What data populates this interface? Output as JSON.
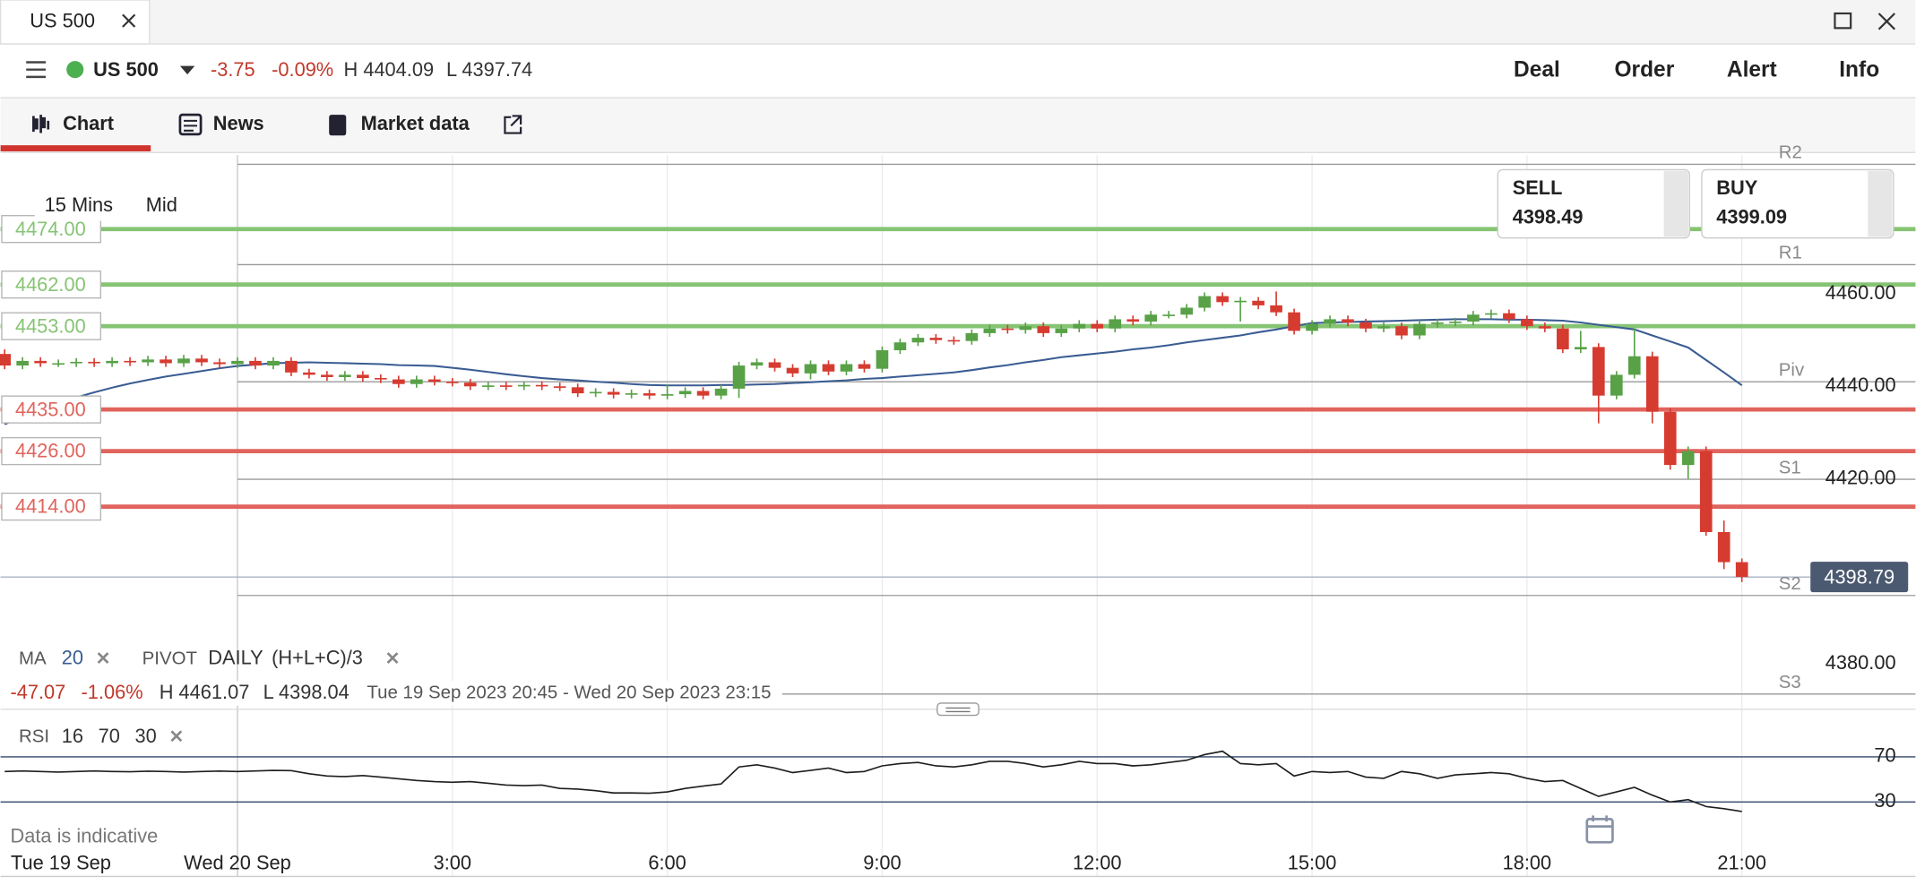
{
  "window": {
    "tab": "US 500"
  },
  "header": {
    "instrument": "US 500",
    "change": -3.75,
    "change_pct": "-0.09%",
    "high": "H 4404.09",
    "low": "L 4397.74",
    "actions": [
      "Deal",
      "Order",
      "Alert",
      "Info"
    ]
  },
  "tabs": [
    "Chart",
    "News",
    "Market data"
  ],
  "toolbar": {
    "interval": "15 Mins",
    "price_type": "Mid"
  },
  "quote": {
    "sell_label": "SELL",
    "sell": 4398.49,
    "buy_label": "BUY",
    "buy": 4399.09
  },
  "indicators": {
    "pivot": "PIVOT",
    "pivot_period": "DAILY",
    "pivot_formula": "(H+L+C)/3"
  },
  "stats": {
    "change": -47.07,
    "change_pct": "-1.06%",
    "high": "H 4461.07",
    "low": "L 4398.04",
    "range": "Tue 19 Sep 2023 20:45 - Wed 20 Sep 2023 23:15"
  },
  "footer": {
    "note": "Data is indicative"
  },
  "chart_data": [
    {
      "type": "candlestick",
      "categories": [
        "Tue 19 Sep",
        null,
        null,
        null,
        null,
        null,
        null,
        null,
        null,
        null,
        null,
        null,
        null,
        "Wed 20 Sep",
        null,
        null,
        null,
        null,
        null,
        null,
        null,
        null,
        null,
        null,
        null,
        "3:00",
        null,
        null,
        null,
        null,
        null,
        null,
        null,
        null,
        null,
        null,
        null,
        "6:00",
        null,
        null,
        null,
        null,
        null,
        null,
        null,
        null,
        null,
        null,
        null,
        "9:00",
        null,
        null,
        null,
        null,
        null,
        null,
        null,
        null,
        null,
        null,
        null,
        "12:00",
        null,
        null,
        null,
        null,
        null,
        null,
        null,
        null,
        null,
        null,
        null,
        "15:00",
        null,
        null,
        null,
        null,
        null,
        null,
        null,
        null,
        null,
        null,
        null,
        "18:00",
        null,
        null,
        null,
        null,
        null,
        null,
        null,
        null,
        null,
        null,
        null,
        "21:00"
      ],
      "candles": [
        [
          4447,
          4448,
          4443.7,
          4444.5
        ],
        [
          4444.5,
          4446.3,
          4443.7,
          4445.5
        ],
        [
          4445.5,
          4446.3,
          4444.2,
          4445
        ],
        [
          4445,
          4445.8,
          4444.2,
          4445
        ],
        [
          4445,
          4446.1,
          4444.2,
          4445.3
        ],
        [
          4445.3,
          4446.1,
          4444.2,
          4445
        ],
        [
          4445,
          4446.3,
          4444.2,
          4445.5
        ],
        [
          4445.5,
          4446.3,
          4444.4,
          4445.2
        ],
        [
          4445.2,
          4446.6,
          4444.4,
          4445.8
        ],
        [
          4445.8,
          4446.6,
          4444.2,
          4445
        ],
        [
          4445,
          4446.8,
          4444.2,
          4446
        ],
        [
          4446,
          4446.8,
          4444.4,
          4445.2
        ],
        [
          4445.2,
          4446,
          4444,
          4444.8
        ],
        [
          4444.8,
          4446.3,
          4444,
          4445.5
        ],
        [
          4445.5,
          4446.3,
          4443.7,
          4444.5
        ],
        [
          4444.5,
          4446.3,
          4443.7,
          4445.5
        ],
        [
          4445.5,
          4446.3,
          4442.2,
          4443
        ],
        [
          4443,
          4443.8,
          4441.7,
          4442.5
        ],
        [
          4442.5,
          4443.3,
          4441.2,
          4442
        ],
        [
          4442,
          4443.3,
          4441.2,
          4442.5
        ],
        [
          4442.5,
          4443.3,
          4441,
          4441.8
        ],
        [
          4441.8,
          4442.6,
          4440.7,
          4441.5
        ],
        [
          4441.5,
          4442.3,
          4439.7,
          4440.5
        ],
        [
          4440.5,
          4442.3,
          4439.7,
          4441.5
        ],
        [
          4441.5,
          4442.3,
          4440.2,
          4441
        ],
        [
          4441,
          4441.8,
          4440,
          4440.8
        ],
        [
          4440.8,
          4441.6,
          4439.2,
          4440
        ],
        [
          4440,
          4441,
          4439.2,
          4440.2
        ],
        [
          4440.2,
          4441,
          4439.2,
          4440
        ],
        [
          4440,
          4441.1,
          4439.2,
          4440.3
        ],
        [
          4440.3,
          4441.1,
          4439.2,
          4440
        ],
        [
          4440,
          4440.8,
          4439,
          4439.8
        ],
        [
          4439.8,
          4440.6,
          4437.7,
          4438.5
        ],
        [
          4438.5,
          4439.6,
          4437.7,
          4438.8
        ],
        [
          4438.8,
          4439.6,
          4437.4,
          4438.2
        ],
        [
          4438.2,
          4439.3,
          4437.4,
          4438.5
        ],
        [
          4438.5,
          4439.3,
          4437.2,
          4438
        ],
        [
          4438,
          4440.5,
          4437.2,
          4438.3
        ],
        [
          4438.3,
          4439.8,
          4437.5,
          4439
        ],
        [
          4439,
          4439.8,
          4437.2,
          4438
        ],
        [
          4438,
          4440.3,
          4437.2,
          4439.5
        ],
        [
          4439.5,
          4445.3,
          4437.5,
          4444.5
        ],
        [
          4444.5,
          4446,
          4443.7,
          4445.2
        ],
        [
          4445.2,
          4446,
          4443.2,
          4444
        ],
        [
          4444,
          4444.8,
          4442,
          4442.8
        ],
        [
          4442.8,
          4445.6,
          4441.5,
          4444.8
        ],
        [
          4444.8,
          4445.6,
          4442.4,
          4443.2
        ],
        [
          4443.2,
          4445.6,
          4442.4,
          4444.8
        ],
        [
          4444.8,
          4445.6,
          4443,
          4443.8
        ],
        [
          4443.8,
          4448.6,
          4443,
          4447.8
        ],
        [
          4447.8,
          4450.3,
          4447,
          4449.5
        ],
        [
          4449.5,
          4451.3,
          4448.7,
          4450.5
        ],
        [
          4450.5,
          4451.3,
          4449.2,
          4450
        ],
        [
          4450,
          4450.8,
          4449,
          4449.8
        ],
        [
          4449.8,
          4452.3,
          4449,
          4451.5
        ],
        [
          4451.5,
          4453.3,
          4450.7,
          4452.5
        ],
        [
          4452.5,
          4453.3,
          4451.4,
          4452.2
        ],
        [
          4452.2,
          4453.8,
          4451.4,
          4453
        ],
        [
          4453,
          4453.8,
          4450.7,
          4451.5
        ],
        [
          4451.5,
          4453.3,
          4450.7,
          4452.5
        ],
        [
          4452.5,
          4454.3,
          4451.7,
          4453.5
        ],
        [
          4453.5,
          4454.3,
          4451.7,
          4452.5
        ],
        [
          4452.5,
          4455.3,
          4451.7,
          4454.5
        ],
        [
          4454.5,
          4455.3,
          4453.2,
          4454
        ],
        [
          4454,
          4456.3,
          4453.2,
          4455.5
        ],
        [
          4455.5,
          4456.3,
          4454.7,
          4455.5
        ],
        [
          4455.5,
          4457.8,
          4454.7,
          4457
        ],
        [
          4457,
          4460.3,
          4456.2,
          4459.5
        ],
        [
          4459.5,
          4460.3,
          4457.4,
          4458.2
        ],
        [
          4458.2,
          4459.3,
          4454,
          4458.5
        ],
        [
          4458.5,
          4459.3,
          4456.7,
          4457.5
        ],
        [
          4457.5,
          4460.5,
          4455.2,
          4456
        ],
        [
          4456,
          4456.8,
          4451.2,
          4452
        ],
        [
          4452,
          4454.3,
          4451.2,
          4453.5
        ],
        [
          4453.5,
          4455.3,
          4452.7,
          4454.5
        ],
        [
          4454.5,
          4455.3,
          4453,
          4453.8
        ],
        [
          4453.8,
          4454.6,
          4451.7,
          4452.5
        ],
        [
          4452.5,
          4453.8,
          4451.7,
          4453
        ],
        [
          4453,
          4453.8,
          4450.2,
          4451
        ],
        [
          4451,
          4454.3,
          4450.2,
          4453.5
        ],
        [
          4453.5,
          4454.6,
          4452.7,
          4453.8
        ],
        [
          4453.8,
          4454.8,
          4453,
          4454
        ],
        [
          4454,
          4456.3,
          4453.2,
          4455.5
        ],
        [
          4455.5,
          4456.6,
          4454.7,
          4455.8
        ],
        [
          4455.8,
          4456.6,
          4453.7,
          4454.5
        ],
        [
          4454.5,
          4455.3,
          4452.2,
          4453
        ],
        [
          4453,
          4453.8,
          4451.7,
          4452.5
        ],
        [
          4452.5,
          4453.3,
          4447.2,
          4448
        ],
        [
          4448,
          4452,
          4447.2,
          4448.5
        ],
        [
          4448.5,
          4449.3,
          4432,
          4438
        ],
        [
          4438,
          4443.3,
          4437.2,
          4442.5
        ],
        [
          4442.5,
          4452.5,
          4441.7,
          4446.5
        ],
        [
          4446.5,
          4447.5,
          4432,
          4434.5
        ],
        [
          4434.5,
          4435.3,
          4422,
          4423
        ],
        [
          4423,
          4427,
          4420,
          4426
        ],
        [
          4426,
          4427,
          4407.7,
          4408.5
        ],
        [
          4408.5,
          4411,
          4400.5,
          4402
        ],
        [
          4402,
          4402.8,
          4397.7,
          4398.8
        ]
      ],
      "up_color": "#58a147",
      "down_color": "#d63b30",
      "ma": {
        "name": "MA",
        "period": 20,
        "color": "#3a5c92",
        "values": [
          4431.8,
          4433.5,
          4435,
          4436.4,
          4437.6,
          4438.7,
          4439.7,
          4440.6,
          4441.4,
          4442.1,
          4442.7,
          4443.3,
          4443.9,
          4444.4,
          4444.7,
          4445,
          4445.1,
          4445.2,
          4445.1,
          4445,
          4444.9,
          4444.8,
          4444.6,
          4444.5,
          4444.4,
          4444,
          4443.6,
          4443.1,
          4442.6,
          4442.2,
          4441.8,
          4441.5,
          4441.3,
          4441,
          4440.8,
          4440.5,
          4440.3,
          4440.2,
          4440.2,
          4440.2,
          4440.3,
          4440.3,
          4440.4,
          4440.5,
          4440.7,
          4440.9,
          4441.1,
          4441.3,
          4441.6,
          4441.8,
          4442.1,
          4442.4,
          4442.7,
          4443,
          4443.5,
          4444.1,
          4444.6,
          4445.2,
          4445.7,
          4446.3,
          4446.7,
          4447.1,
          4447.5,
          4448,
          4448.4,
          4448.9,
          4449.5,
          4450,
          4450.5,
          4451,
          4451.7,
          4452.3,
          4453,
          4453.7,
          4453.8,
          4453.9,
          4454,
          4454.1,
          4454.2,
          4454.3,
          4454.4,
          4454.5,
          4454.5,
          4454.5,
          4454.4,
          4454.4,
          4454.3,
          4454.2,
          4453.8,
          4453.3,
          4452.8,
          4452.3,
          4451,
          4449.7,
          4448.4,
          4445.7,
          4443,
          4440.2
        ]
      },
      "ylim": [
        4371,
        4490
      ],
      "yticks": [
        {
          "value": 4460,
          "label": "4460.00"
        },
        {
          "value": 4440,
          "label": "4440.00"
        },
        {
          "value": 4420,
          "label": "4420.00"
        },
        {
          "value": 4380,
          "label": "4380.00"
        }
      ],
      "levels": [
        {
          "value": 4474,
          "label": "4474.00",
          "color": "#86c474"
        },
        {
          "value": 4462,
          "label": "4462.00",
          "color": "#86c474"
        },
        {
          "value": 4453,
          "label": "4453.00",
          "color": "#86c474"
        },
        {
          "value": 4435,
          "label": "4435.00",
          "color": "#e0645d"
        },
        {
          "value": 4426,
          "label": "4426.00",
          "color": "#e0645d"
        },
        {
          "value": 4414,
          "label": "4414.00",
          "color": "#e0645d"
        }
      ],
      "pivots": [
        {
          "name": "R2",
          "value": 4488
        },
        {
          "name": "R1",
          "value": 4466.3
        },
        {
          "name": "Piv",
          "value": 4441
        },
        {
          "name": "S1",
          "value": 4419.9
        },
        {
          "name": "S2",
          "value": 4394.8
        },
        {
          "name": "S3",
          "value": 4373.5
        }
      ],
      "last": 4398.79,
      "grid": true
    },
    {
      "type": "line",
      "title": "RSI",
      "period": 16,
      "overbought": 70,
      "oversold": 30,
      "color": "#1e1e1e",
      "values": [
        57,
        57.5,
        57,
        56.5,
        57,
        57.5,
        57,
        56.8,
        57.2,
        57,
        56.5,
        57,
        57.4,
        57,
        57.5,
        58,
        57.8,
        55,
        53,
        52.5,
        53.5,
        52,
        50.5,
        49,
        48,
        47.5,
        48,
        46.5,
        45,
        44.5,
        45,
        42,
        41.5,
        40,
        38,
        38,
        37.8,
        39,
        42,
        44,
        46,
        61,
        63,
        60,
        56,
        58,
        60,
        56,
        57,
        62,
        64,
        65,
        62,
        61,
        63,
        66,
        66,
        64,
        61,
        63,
        66,
        64,
        64,
        62,
        63,
        65,
        67,
        72,
        75,
        64,
        63,
        64,
        53,
        57,
        56,
        57,
        52,
        51,
        57,
        55,
        51,
        54,
        55,
        56,
        55,
        51,
        48,
        49,
        42,
        35,
        39,
        43,
        36,
        30,
        32,
        26,
        24,
        21.5
      ],
      "ylim": [
        -5.7,
        99.2
      ],
      "yticks": [
        30,
        70
      ],
      "tick_line_color": "#34466a"
    }
  ]
}
